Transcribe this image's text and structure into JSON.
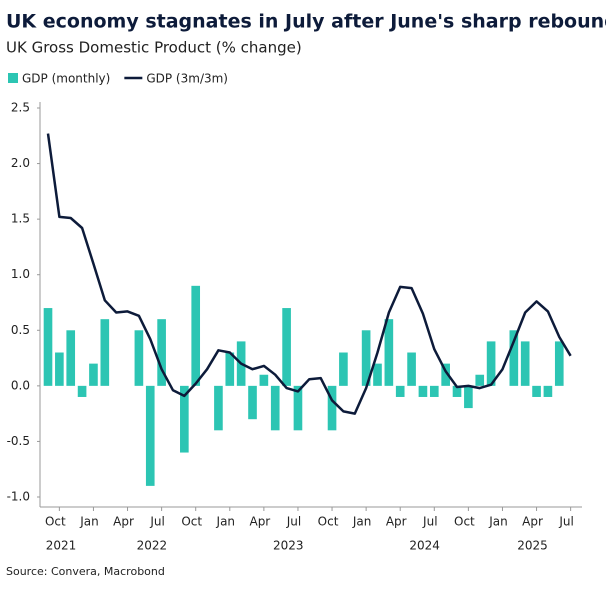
{
  "chart_data": {
    "type": "bar_line",
    "title": "UK economy stagnates in July after June's sharp rebound",
    "subtitle": "UK Gross Domestic Product (% change)",
    "source": "Source: Convera, Macrobond",
    "categories": [
      null,
      "Oct",
      null,
      null,
      "Jan",
      null,
      null,
      "Apr",
      null,
      null,
      "Jul",
      null,
      null,
      "Oct",
      null,
      null,
      "Jan",
      null,
      null,
      "Apr",
      null,
      null,
      "Jul",
      null,
      null,
      "Oct",
      null,
      null,
      "Jan",
      null,
      null,
      "Apr",
      null,
      null,
      "Jul",
      null,
      null,
      "Oct",
      null,
      null,
      "Jan",
      null,
      null,
      "Apr",
      null,
      null,
      "Jul"
    ],
    "x_groups": [
      {
        "label": "2021",
        "count": 4
      },
      {
        "label": "2022",
        "count": 12
      },
      {
        "label": "2023",
        "count": 12
      },
      {
        "label": "2024",
        "count": 12
      },
      {
        "label": "2025",
        "count": 7
      }
    ],
    "series": [
      {
        "name": "GDP (monthly)",
        "kind": "bar",
        "color": "#2cc5b3",
        "values": [
          0.7,
          0.3,
          0.5,
          -0.1,
          0.2,
          0.6,
          0,
          0,
          0.5,
          -0.9,
          0.6,
          0,
          -0.6,
          0.9,
          0,
          -0.4,
          0.3,
          0.4,
          -0.3,
          0.1,
          -0.4,
          0.7,
          -0.4,
          0,
          0,
          -0.4,
          0.3,
          0,
          0.5,
          0.2,
          0.6,
          -0.1,
          0.3,
          -0.1,
          -0.1,
          0.2,
          -0.1,
          -0.2,
          0.1,
          0.4,
          0,
          0.5,
          0.4,
          -0.1,
          -0.1,
          0.4,
          0
        ]
      },
      {
        "name": "GDP (3m/3m)",
        "kind": "line",
        "color": "#0d1b3a",
        "values": [
          2.27,
          1.52,
          1.51,
          1.42,
          1.1,
          0.77,
          0.66,
          0.67,
          0.63,
          0.42,
          0.15,
          -0.04,
          -0.09,
          0.02,
          0.15,
          0.32,
          0.3,
          0.2,
          0.15,
          0.18,
          0.1,
          -0.02,
          -0.05,
          0.06,
          0.07,
          -0.13,
          -0.23,
          -0.25,
          -0.02,
          0.3,
          0.66,
          0.89,
          0.88,
          0.65,
          0.33,
          0.13,
          -0.01,
          0,
          -0.02,
          0.01,
          0.15,
          0.4,
          0.66,
          0.76,
          0.67,
          0.44,
          0.27
        ]
      }
    ],
    "ylim": [
      -1.0,
      2.5
    ],
    "yticks": [
      {
        "value": 2.5,
        "label": "2.5"
      },
      {
        "value": 2.0,
        "label": "2.0"
      },
      {
        "value": 1.5,
        "label": "1.5"
      },
      {
        "value": 1.0,
        "label": "1.0"
      },
      {
        "value": 0.5,
        "label": "0.5"
      },
      {
        "value": 0.0,
        "label": "0.0"
      },
      {
        "value": -0.5,
        "label": "-0.5"
      },
      {
        "value": -1.0,
        "label": "-1.0"
      }
    ]
  }
}
